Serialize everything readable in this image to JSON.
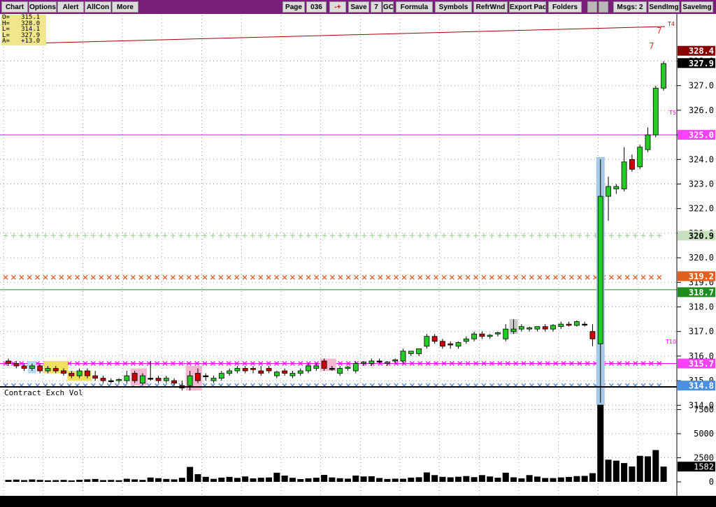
{
  "toolbar": {
    "chart": "Chart",
    "options": "Options",
    "alert": "Alert",
    "allcon": "AllCon",
    "more": "More",
    "page": "Page",
    "page_num": "036",
    "arrows": "-+",
    "save": "Save",
    "seven": "7",
    "gc": "GC",
    "formula": "Formula",
    "symbols": "Symbols",
    "refrwnd": "RefrWnd",
    "export": "Export Pac",
    "folders": "Folders",
    "msgs": "Msgs: 2",
    "sendimg": "SendImg",
    "saveimg": "SaveImg"
  },
  "ohlc": [
    {
      "k": "O=",
      "v": "315.1"
    },
    {
      "k": "H=",
      "v": "328.0"
    },
    {
      "k": "L=",
      "v": "314.1"
    },
    {
      "k": "L=",
      "v": "327.9"
    },
    {
      "k": "A=",
      "v": "+13.0"
    }
  ],
  "volume_title": "Contract Exch Vol",
  "price_tags": {
    "p3284": "328.4",
    "p3279": "327.9",
    "p3250": "325.0",
    "p3209": "320.9",
    "p3192": "319.2",
    "p3187": "318.7",
    "p3157": "315.7",
    "p3148": "314.8",
    "vol": "1582"
  },
  "markers": {
    "t4": "T4",
    "t5": "T5",
    "t10": "T10",
    "seven_a": "7",
    "seven_b": "7"
  },
  "colors": {
    "up": "#22cc22",
    "down": "#cc0000",
    "magenta": "#ff00ff",
    "orange": "#e06020",
    "blue": "#4a90e2",
    "green_line": "#228b22",
    "toolbar": "#7a1e7a"
  },
  "chart_data": {
    "type": "candlestick",
    "price_axis": {
      "min": 314.0,
      "max": 328.0,
      "ticks": [
        "314.0",
        "315.0",
        "316.0",
        "317.0",
        "318.0",
        "319.0",
        "320.0",
        "321.0",
        "322.0",
        "323.0",
        "324.0",
        "325.0",
        "326.0",
        "327.0",
        "328.0"
      ]
    },
    "volume_axis": {
      "ticks": [
        "0",
        "2500",
        "5000",
        "7500"
      ]
    },
    "candles": [
      [
        315.8,
        315.9,
        315.6,
        315.7
      ],
      [
        315.7,
        315.8,
        315.5,
        315.6
      ],
      [
        315.6,
        315.7,
        315.4,
        315.5
      ],
      [
        315.5,
        315.7,
        315.4,
        315.6
      ],
      [
        315.6,
        315.7,
        315.3,
        315.4
      ],
      [
        315.4,
        315.6,
        315.3,
        315.5
      ],
      [
        315.5,
        315.6,
        315.3,
        315.4
      ],
      [
        315.4,
        315.5,
        315.2,
        315.3
      ],
      [
        315.3,
        315.4,
        315.1,
        315.2
      ],
      [
        315.2,
        315.5,
        315.1,
        315.4
      ],
      [
        315.4,
        315.5,
        315.1,
        315.2
      ],
      [
        315.2,
        315.4,
        315.0,
        315.1
      ],
      [
        315.1,
        315.2,
        314.9,
        315.0
      ],
      [
        315.0,
        315.1,
        314.9,
        315.0
      ],
      [
        315.0,
        315.1,
        314.9,
        315.05
      ],
      [
        315.0,
        315.4,
        314.9,
        315.2
      ],
      [
        315.3,
        315.4,
        314.9,
        315.0
      ],
      [
        314.9,
        315.3,
        314.8,
        315.2
      ],
      [
        315.1,
        315.8,
        315.0,
        315.1
      ],
      [
        315.1,
        315.2,
        314.9,
        315.0
      ],
      [
        315.0,
        315.2,
        314.9,
        315.1
      ],
      [
        315.0,
        315.1,
        314.8,
        314.9
      ],
      [
        314.8,
        315.0,
        314.6,
        314.7
      ],
      [
        314.8,
        315.4,
        314.6,
        315.2
      ],
      [
        315.3,
        315.5,
        314.9,
        315.0
      ],
      [
        315.2,
        315.3,
        315.0,
        315.2
      ],
      [
        315.0,
        315.2,
        314.9,
        315.1
      ],
      [
        315.1,
        315.4,
        315.0,
        315.3
      ],
      [
        315.3,
        315.5,
        315.2,
        315.4
      ],
      [
        315.4,
        315.6,
        315.3,
        315.5
      ],
      [
        315.5,
        315.6,
        315.3,
        315.4
      ],
      [
        315.5,
        315.6,
        315.3,
        315.45
      ],
      [
        315.4,
        315.6,
        315.2,
        315.3
      ],
      [
        315.5,
        315.6,
        315.3,
        315.4
      ],
      [
        315.2,
        315.4,
        315.1,
        315.35
      ],
      [
        315.4,
        315.5,
        315.2,
        315.3
      ],
      [
        315.2,
        315.4,
        315.1,
        315.3
      ],
      [
        315.3,
        315.5,
        315.2,
        315.4
      ],
      [
        315.4,
        315.7,
        315.3,
        315.6
      ],
      [
        315.5,
        315.7,
        315.4,
        315.6
      ],
      [
        315.8,
        315.9,
        315.4,
        315.5
      ],
      [
        315.5,
        315.6,
        315.4,
        315.5
      ],
      [
        315.3,
        315.6,
        315.2,
        315.5
      ],
      [
        315.5,
        315.6,
        315.4,
        315.55
      ],
      [
        315.4,
        315.8,
        315.3,
        315.7
      ],
      [
        315.7,
        315.8,
        315.6,
        315.75
      ],
      [
        315.7,
        315.9,
        315.6,
        315.8
      ],
      [
        315.8,
        315.9,
        315.7,
        315.8
      ],
      [
        315.7,
        315.8,
        315.6,
        315.75
      ],
      [
        315.8,
        315.9,
        315.7,
        315.85
      ],
      [
        315.8,
        316.3,
        315.7,
        316.2
      ],
      [
        316.1,
        316.2,
        316.0,
        316.2
      ],
      [
        316.1,
        316.3,
        316.0,
        316.3
      ],
      [
        316.4,
        316.9,
        316.3,
        316.8
      ],
      [
        316.8,
        316.9,
        316.5,
        316.6
      ],
      [
        316.6,
        316.7,
        316.3,
        316.4
      ],
      [
        316.5,
        316.6,
        316.3,
        316.45
      ],
      [
        316.4,
        316.6,
        316.3,
        316.55
      ],
      [
        316.6,
        316.8,
        316.5,
        316.7
      ],
      [
        316.7,
        317.0,
        316.6,
        316.9
      ],
      [
        316.9,
        317.0,
        316.7,
        316.8
      ],
      [
        316.8,
        316.9,
        316.7,
        316.85
      ],
      [
        316.9,
        317.0,
        316.8,
        316.95
      ],
      [
        316.7,
        317.3,
        316.6,
        317.1
      ],
      [
        317.0,
        317.5,
        316.9,
        317.1
      ],
      [
        317.1,
        317.3,
        317.0,
        317.2
      ],
      [
        317.1,
        317.2,
        317.0,
        317.15
      ],
      [
        317.1,
        317.2,
        317.0,
        317.2
      ],
      [
        317.2,
        317.3,
        317.0,
        317.1
      ],
      [
        317.1,
        317.3,
        317.0,
        317.25
      ],
      [
        317.2,
        317.4,
        317.1,
        317.3
      ],
      [
        317.3,
        317.4,
        317.2,
        317.25
      ],
      [
        317.25,
        317.45,
        317.2,
        317.4
      ],
      [
        317.3,
        317.4,
        317.2,
        317.3
      ],
      [
        317.0,
        317.3,
        316.4,
        316.7
      ],
      [
        316.5,
        324.0,
        314.1,
        322.5
      ],
      [
        322.5,
        323.3,
        321.5,
        322.9
      ],
      [
        322.8,
        323.0,
        322.6,
        322.9
      ],
      [
        322.8,
        324.5,
        322.7,
        323.9
      ],
      [
        324.0,
        324.2,
        323.5,
        323.6
      ],
      [
        323.7,
        324.6,
        323.6,
        324.5
      ],
      [
        324.4,
        325.3,
        324.3,
        325.0
      ],
      [
        325.0,
        327.0,
        324.9,
        326.9
      ],
      [
        326.9,
        328.0,
        326.8,
        327.9
      ]
    ],
    "volume": [
      200,
      230,
      180,
      250,
      200,
      160,
      180,
      200,
      150,
      210,
      260,
      300,
      180,
      200,
      170,
      320,
      260,
      200,
      450,
      380,
      300,
      260,
      420,
      1550,
      800,
      520,
      310,
      440,
      520,
      410,
      560,
      360,
      430,
      460,
      950,
      650,
      420,
      290,
      370,
      430,
      720,
      460,
      380,
      330,
      650,
      560,
      580,
      400,
      300,
      330,
      320,
      440,
      480,
      980,
      700,
      520,
      470,
      530,
      600,
      490,
      700,
      560,
      430,
      950,
      470,
      360,
      700,
      550,
      400,
      390,
      460,
      510,
      600,
      620,
      900,
      8000,
      2300,
      2200,
      1950,
      1600,
      2700,
      2650,
      3300,
      1582
    ],
    "levels": {
      "magenta_line": 325.0,
      "green_dash": 320.9,
      "orange_x": 319.2,
      "green_line": 318.7,
      "magenta_x": 315.7,
      "blue_x": 314.8
    }
  }
}
